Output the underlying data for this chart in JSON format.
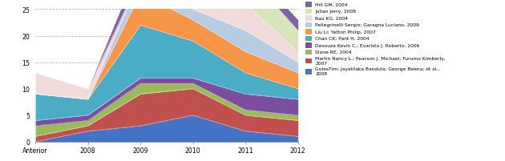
{
  "x_labels": [
    "Anterior",
    "2008",
    "2009",
    "2010",
    "2011",
    "2012"
  ],
  "x_positions": [
    0,
    1,
    2,
    3,
    4,
    5
  ],
  "series": [
    {
      "name": "GolesTim; Jayatilaka Bandula; George Beena; et al.,\n2008",
      "color": "#4472C4",
      "values": [
        0,
        2,
        3,
        5,
        2,
        1
      ]
    },
    {
      "name": "Martin Nancy L.; Pearson J. Michael; Furumo Kimberly,\n2007",
      "color": "#C0504D",
      "values": [
        1,
        1,
        6,
        5,
        3,
        3
      ]
    },
    {
      "name": "Slone RE, 2004",
      "color": "#9BBB59",
      "values": [
        2,
        1,
        2,
        1,
        1,
        1
      ]
    },
    {
      "name": "Desouza Kevin C.; Evaristo J. Roberto, 2006",
      "color": "#7B4EA0",
      "values": [
        1,
        1,
        1,
        1,
        3,
        3
      ]
    },
    {
      "name": "Chan CK; Pant H, 2004",
      "color": "#4BACC6",
      "values": [
        5,
        3,
        10,
        7,
        4,
        2
      ]
    },
    {
      "name": "Liu Li; Yetton Philip, 2007",
      "color": "#F79646",
      "values": [
        0,
        0,
        6,
        4,
        4,
        3
      ]
    },
    {
      "name": "Pellegrinelli Sergio; Garagna Luciano, 2009",
      "color": "#B8CCE4",
      "values": [
        0,
        0,
        3,
        2,
        4,
        2
      ]
    },
    {
      "name": "Rau KG, 2004",
      "color": "#F2DCDB",
      "values": [
        4,
        2,
        0,
        4,
        5,
        2
      ]
    },
    {
      "name": "Julian Jerry, 2008",
      "color": "#D7E4BC",
      "values": [
        0,
        0,
        0,
        0,
        6,
        4
      ]
    },
    {
      "name": "Hill GM, 2004",
      "color": "#8064A2",
      "values": [
        0,
        0,
        3,
        2,
        2,
        2
      ]
    }
  ],
  "ylim": [
    0,
    25
  ],
  "yticks": [
    0,
    5,
    10,
    15,
    20,
    25
  ],
  "background_color": "#FFFFFF",
  "grid_color": "#B0B0B0",
  "figwidth": 9.0,
  "figheight": 2.88,
  "dpi": 70
}
